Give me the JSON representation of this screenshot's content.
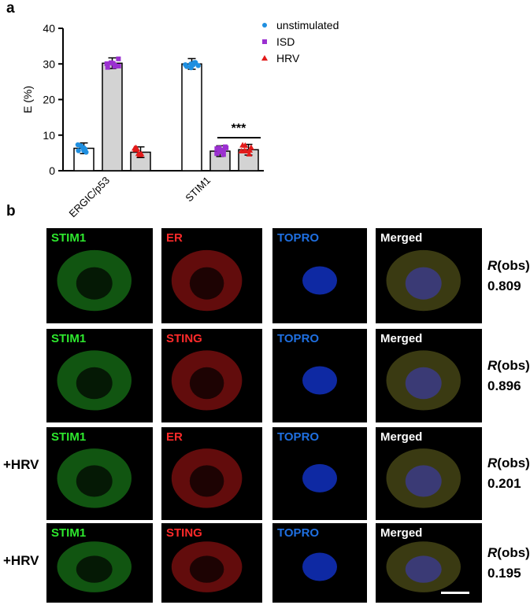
{
  "panels": {
    "a": "a",
    "b": "b"
  },
  "chart_data": {
    "type": "bar",
    "ylabel": "E (%)",
    "ylim": [
      0,
      40
    ],
    "yticks": [
      0,
      10,
      20,
      30,
      40
    ],
    "categories": [
      "ERGIC/p53",
      "STIM1"
    ],
    "series": [
      {
        "name": "unstimulated",
        "values": [
          6.3,
          30.0
        ],
        "color": "#1f8fe0",
        "marker": "circle",
        "bar_fill": "#ffffff"
      },
      {
        "name": "ISD",
        "values": [
          30.2,
          5.5
        ],
        "color": "#9b30d0",
        "marker": "square",
        "bar_fill": "#d3d3d3"
      },
      {
        "name": "HRV",
        "values": [
          5.2,
          5.9
        ],
        "color": "#e21b1b",
        "marker": "triangle",
        "bar_fill": "#d3d3d3"
      }
    ],
    "annotation": "***",
    "legend_position": "top-right"
  },
  "rows": [
    {
      "condition": "",
      "channels": [
        "STIM1",
        "ER",
        "TOPRO",
        "Merged"
      ],
      "r_label": "R",
      "r_suffix": "(obs)",
      "r_value": "0.809"
    },
    {
      "condition": "",
      "channels": [
        "STIM1",
        "STING",
        "TOPRO",
        "Merged"
      ],
      "r_label": "R",
      "r_suffix": "(obs)",
      "r_value": "0.896"
    },
    {
      "condition": "+HRV",
      "channels": [
        "STIM1",
        "ER",
        "TOPRO",
        "Merged"
      ],
      "r_label": "R",
      "r_suffix": "(obs)",
      "r_value": "0.201"
    },
    {
      "condition": "+HRV",
      "channels": [
        "STIM1",
        "STING",
        "TOPRO",
        "Merged"
      ],
      "r_label": "R",
      "r_suffix": "(obs)",
      "r_value": "0.195"
    }
  ],
  "colors": {
    "green": "#2ee82e",
    "red": "#ff2a2a",
    "blue": "#1f6fe0",
    "white": "#ffffff"
  }
}
